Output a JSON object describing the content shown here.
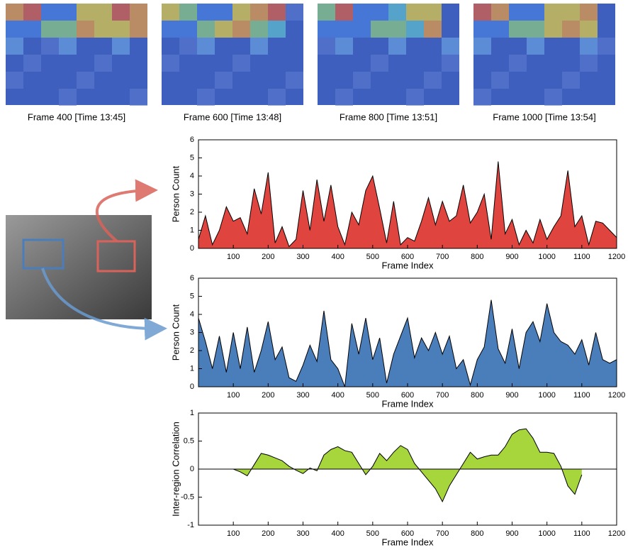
{
  "frames": [
    "Frame 400 [Time 13:45]",
    "Frame 600 [Time 13:48]",
    "Frame 800 [Time 13:51]",
    "Frame 1000 [Time 13:54]"
  ],
  "chart_data": [
    {
      "type": "area",
      "ylabel": "Person Count",
      "xlabel": "Frame Index",
      "color": "#e0443f",
      "x": [
        0,
        20,
        40,
        60,
        80,
        100,
        120,
        140,
        160,
        180,
        200,
        220,
        240,
        260,
        280,
        300,
        320,
        340,
        360,
        380,
        400,
        420,
        440,
        460,
        480,
        500,
        520,
        540,
        560,
        580,
        600,
        620,
        640,
        660,
        680,
        700,
        720,
        740,
        760,
        780,
        800,
        820,
        840,
        860,
        880,
        900,
        920,
        940,
        960,
        980,
        1000,
        1020,
        1040,
        1060,
        1080,
        1100,
        1120,
        1140,
        1160,
        1180,
        1200
      ],
      "values": [
        0.5,
        1.8,
        0.2,
        1.0,
        2.3,
        1.5,
        1.7,
        0.8,
        3.3,
        1.9,
        4.2,
        0.3,
        1.2,
        0.1,
        0.5,
        3.2,
        1.0,
        3.8,
        1.5,
        3.5,
        1.2,
        0.2,
        2.0,
        1.3,
        3.2,
        4.0,
        2.2,
        0.3,
        2.6,
        0.2,
        0.6,
        0.4,
        1.5,
        2.8,
        1.3,
        2.6,
        1.5,
        1.8,
        3.5,
        1.4,
        2.0,
        3.0,
        0.5,
        4.8,
        0.8,
        1.6,
        0.2,
        1.0,
        0.3,
        1.6,
        0.5,
        1.2,
        1.8,
        4.3,
        1.2,
        1.8,
        0.2,
        1.5,
        1.4,
        1.0,
        0.6
      ],
      "xlim": [
        0,
        1200
      ],
      "ylim": [
        0,
        6
      ],
      "xticks": [
        100,
        200,
        300,
        400,
        500,
        600,
        700,
        800,
        900,
        1000,
        1100,
        1200
      ],
      "yticks": [
        0,
        1,
        2,
        3,
        4,
        5,
        6
      ]
    },
    {
      "type": "area",
      "ylabel": "Person Count",
      "xlabel": "Frame Index",
      "color": "#4a7ebb",
      "x": [
        0,
        20,
        40,
        60,
        80,
        100,
        120,
        140,
        160,
        180,
        200,
        220,
        240,
        260,
        280,
        300,
        320,
        340,
        360,
        380,
        400,
        420,
        440,
        460,
        480,
        500,
        520,
        540,
        560,
        580,
        600,
        620,
        640,
        660,
        680,
        700,
        720,
        740,
        760,
        780,
        800,
        820,
        840,
        860,
        880,
        900,
        920,
        940,
        960,
        980,
        1000,
        1020,
        1040,
        1060,
        1080,
        1100,
        1120,
        1140,
        1160,
        1180,
        1200
      ],
      "values": [
        3.8,
        2.5,
        1.0,
        2.8,
        0.8,
        3.0,
        1.0,
        3.3,
        0.8,
        2.0,
        3.6,
        1.5,
        2.2,
        0.5,
        0.3,
        1.2,
        2.3,
        1.4,
        4.2,
        1.5,
        1.0,
        0.0,
        3.5,
        1.8,
        3.8,
        1.5,
        2.7,
        0.2,
        1.8,
        2.8,
        3.8,
        1.6,
        2.7,
        2.0,
        3.0,
        1.8,
        2.8,
        1.0,
        1.5,
        0.1,
        1.5,
        2.2,
        4.8,
        2.1,
        1.3,
        3.2,
        1.0,
        3.0,
        3.6,
        2.5,
        4.6,
        3.0,
        2.5,
        2.3,
        1.8,
        2.6,
        1.2,
        3.0,
        1.5,
        1.3,
        1.5
      ],
      "xlim": [
        0,
        1200
      ],
      "ylim": [
        0,
        6
      ],
      "xticks": [
        100,
        200,
        300,
        400,
        500,
        600,
        700,
        800,
        900,
        1000,
        1100,
        1200
      ],
      "yticks": [
        0,
        1,
        2,
        3,
        4,
        5,
        6
      ]
    },
    {
      "type": "area",
      "ylabel": "Inter-region Correlation",
      "xlabel": "Frame Index",
      "color": "#a6d63c",
      "x": [
        100,
        120,
        140,
        160,
        180,
        200,
        220,
        240,
        260,
        280,
        300,
        320,
        340,
        360,
        380,
        400,
        420,
        440,
        460,
        480,
        500,
        520,
        540,
        560,
        580,
        600,
        620,
        640,
        660,
        680,
        700,
        720,
        740,
        760,
        780,
        800,
        820,
        840,
        860,
        880,
        900,
        920,
        940,
        960,
        980,
        1000,
        1020,
        1040,
        1060,
        1080,
        1100
      ],
      "values": [
        0,
        -0.05,
        -0.12,
        0.08,
        0.28,
        0.25,
        0.2,
        0.15,
        0.05,
        -0.02,
        -0.08,
        0.02,
        -0.03,
        0.25,
        0.35,
        0.4,
        0.33,
        0.3,
        0.1,
        -0.1,
        0.05,
        0.28,
        0.15,
        0.3,
        0.42,
        0.35,
        0.1,
        -0.05,
        -0.2,
        -0.35,
        -0.58,
        -0.3,
        -0.1,
        0.1,
        0.3,
        0.18,
        0.22,
        0.25,
        0.25,
        0.4,
        0.62,
        0.7,
        0.72,
        0.55,
        0.3,
        0.3,
        0.28,
        0.05,
        -0.3,
        -0.45,
        -0.1
      ],
      "xlim": [
        0,
        1200
      ],
      "ylim": [
        -1,
        1
      ],
      "xticks": [
        100,
        200,
        300,
        400,
        500,
        600,
        700,
        800,
        900,
        1000,
        1100,
        1200
      ],
      "yticks": [
        -1,
        -0.5,
        0,
        0.5,
        1
      ]
    }
  ]
}
